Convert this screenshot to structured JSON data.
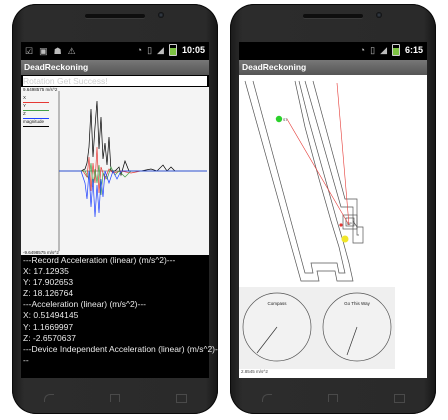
{
  "status": {
    "left_phone_time": "10:05",
    "right_phone_time": "6:15"
  },
  "left_app": {
    "title": "DeadReckoning",
    "message": "Rotation Get Success!",
    "graph": {
      "top_label": "9.6498575 m/s^2",
      "bottom_label": "-9.6498575 m/s^2",
      "legend": [
        {
          "label": "X",
          "color": "#e53935"
        },
        {
          "label": "Y",
          "color": "#43a047"
        },
        {
          "label": "Z",
          "color": "#1e40ff"
        },
        {
          "label": "magnitude",
          "color": "#000000"
        }
      ]
    },
    "readout": [
      "---Record Acceleration (linear) (m/s^2)---",
      "X: 17.12935",
      "Y: 17.902653",
      "Z: 18.126764",
      "---Acceleration (linear) (m/s^2)---",
      "X: 0.51494145",
      "Y: 1.1669997",
      "Z: -2.6570637",
      "---Device Independent Acceleration (linear) (m/s^2)-",
      "--"
    ]
  },
  "right_app": {
    "title": "DeadReckoning",
    "dial_left_label": "Compass",
    "dial_right_label": "Go This Way",
    "bottom_coord": "2.8545 m/s^2"
  }
}
